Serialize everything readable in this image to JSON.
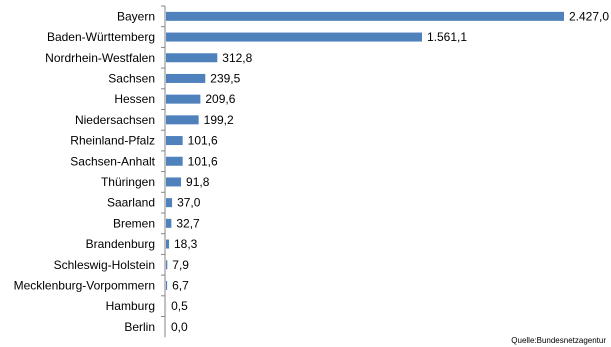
{
  "chart_data": {
    "type": "bar",
    "orientation": "horizontal",
    "categories": [
      "Bayern",
      "Baden-Württemberg",
      "Nordrhein-Westfalen",
      "Sachsen",
      "Hessen",
      "Niedersachsen",
      "Rheinland-Pfalz",
      "Sachsen-Anhalt",
      "Thüringen",
      "Saarland",
      "Bremen",
      "Brandenburg",
      "Schleswig-Holstein",
      "Mecklenburg-Vorpommern",
      "Hamburg",
      "Berlin"
    ],
    "values": [
      2427.0,
      1561.1,
      312.8,
      239.5,
      209.6,
      199.2,
      101.6,
      101.6,
      91.8,
      37.0,
      32.7,
      18.3,
      7.9,
      6.7,
      0.5,
      0.0
    ],
    "value_labels": [
      "2.427,0",
      "1.561,1",
      "312,8",
      "239,5",
      "209,6",
      "199,2",
      "101,6",
      "101,6",
      "91,8",
      "37,0",
      "32,7",
      "18,3",
      "7,9",
      "6,7",
      "0,5",
      "0,0"
    ],
    "source": "Quelle:Bundesnetzagentur",
    "bar_color": "#4F81BD",
    "axis_color": "#868686",
    "grid": false,
    "legend": "none"
  }
}
